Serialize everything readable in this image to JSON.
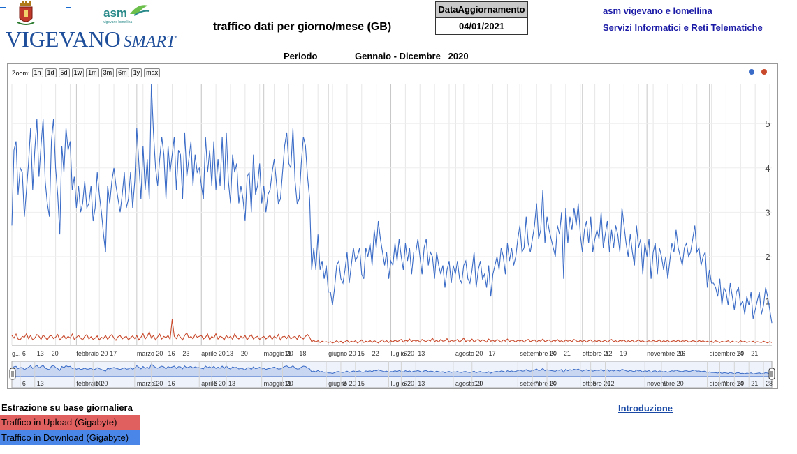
{
  "header": {
    "title": "traffico dati per giorno/mese (GB)",
    "update_label": "DataAggiornamento",
    "update_value": "04/01/2021",
    "org_line1": "asm vigevano e lomellina",
    "org_line2": "Servizi Informatici e Reti Telematiche",
    "periodo_label": "Periodo",
    "periodo_value": "Gennaio - Dicembre   2020",
    "city_logo_main": "VIGEVANO",
    "city_logo_sub": "SMART",
    "asm_logo_text": "asm",
    "asm_logo_sub": "vigevano lomellina"
  },
  "zoom": {
    "label": "Zoom:",
    "buttons": [
      "1h",
      "1d",
      "5d",
      "1w",
      "1m",
      "3m",
      "6m",
      "1y",
      "max"
    ]
  },
  "legend": {
    "title": "Estrazione su base giornaliera",
    "upload": "Traffico in Upload (Gigabyte)",
    "download": "Traffico in Download (Gigabyte)"
  },
  "intro_link": "Introduzione",
  "colors": {
    "download": "#3a6bc6",
    "upload": "#c8492b",
    "accent": "#1a1aa6"
  },
  "chart_data": {
    "type": "line",
    "x_start": "2020-01-01",
    "x_end": "2020-12-31",
    "x_unit": "day",
    "ylim": [
      0,
      5.9
    ],
    "y_ticks": [
      1,
      2,
      3,
      4,
      5
    ],
    "x_ticks": [
      "g...",
      "6",
      "13",
      "20",
      "febbraio 20",
      "17",
      "marzo 20",
      "16",
      "23",
      "aprile 20",
      "13",
      "20",
      "maggio 20",
      "11",
      "18",
      "giugno 20",
      "15",
      "22",
      "luglio 20",
      "6",
      "13",
      "agosto 20",
      "17",
      "settembre 20",
      "14",
      "21",
      "ottobre 20",
      "12",
      "19",
      "novembre 20",
      "16",
      "dicembre 20",
      "14",
      "21"
    ],
    "navigator_ticks": [
      "6",
      "13",
      "febbraio 20",
      "10",
      "marzo 20",
      "9",
      "16",
      "aprile 20",
      "6",
      "13",
      "maggio 20",
      "11",
      "giugno 20",
      "8",
      "15",
      "luglio 20",
      "6",
      "13",
      "agosto 20",
      "10",
      "settembre 20",
      "7",
      "14",
      "ottobre 20",
      "5",
      "12",
      "novembre 20",
      "9",
      "dicembre 20",
      "7",
      "14",
      "21",
      "28"
    ],
    "grid": true,
    "series": [
      {
        "name": "Traffico in Download (Gigabyte)",
        "color": "#3a6bc6",
        "monthly_values": [
          [
            2.7,
            4.4,
            4.6,
            3.4,
            4.0,
            3.9,
            2.9,
            3.5,
            4.1,
            4.9,
            3.5,
            4.4,
            5.1,
            3.8,
            4.5,
            5.1,
            3.7,
            3.2,
            2.9,
            4.6,
            5.1,
            4.0,
            3.4,
            2.5,
            4.5,
            3.9,
            4.9,
            4.4,
            4.6,
            3.5,
            3.8
          ],
          [
            3.1,
            3.6,
            3.0,
            3.2,
            3.7,
            3.1,
            3.2,
            3.6,
            2.8,
            3.1,
            3.9,
            3.4,
            3.0,
            2.5,
            2.1,
            3.6,
            3.2,
            3.7,
            4.0,
            3.6,
            3.3,
            3.0,
            3.4,
            3.9,
            3.1,
            3.3,
            3.9,
            3.1,
            3.7
          ],
          [
            4.9,
            4.1,
            3.3,
            4.5,
            3.5,
            4.2,
            3.3,
            5.9,
            4.8,
            4.0,
            3.6,
            4.2,
            4.7,
            4.3,
            3.3,
            4.5,
            3.9,
            4.3,
            4.7,
            3.5,
            4.4,
            4.3,
            3.3,
            4.8,
            3.8,
            4.2,
            4.6,
            3.6,
            4.3,
            3.9,
            4.0
          ],
          [
            3.6,
            3.3,
            4.7,
            3.9,
            4.4,
            3.6,
            4.6,
            3.5,
            4.2,
            3.6,
            4.7,
            3.5,
            4.8,
            3.7,
            3.2,
            4.3,
            3.9,
            4.1,
            3.2,
            3.6,
            3.3,
            2.8,
            3.8,
            3.9,
            3.0,
            4.3,
            3.4,
            3.6,
            4.1,
            3.2
          ],
          [
            3.6,
            3.0,
            3.4,
            3.5,
            3.9,
            4.2,
            3.7,
            3.2,
            3.3,
            3.9,
            4.5,
            4.8,
            4.1,
            4.0,
            4.9,
            3.7,
            3.2,
            3.3,
            4.1,
            4.7,
            4.5,
            3.8,
            3.3,
            1.7,
            2.2,
            1.7,
            2.5,
            1.7,
            1.9,
            1.5,
            1.8
          ],
          [
            1.2,
            1.2,
            0.9,
            1.3,
            1.8,
            1.9,
            1.5,
            1.4,
            1.7,
            2.1,
            1.4,
            1.8,
            2.2,
            1.9,
            2.0,
            2.2,
            1.6,
            1.5,
            2.2,
            2.0,
            2.3,
            1.8,
            2.6,
            2.2,
            2.8,
            2.4,
            2.1,
            1.8,
            2.1,
            1.5
          ],
          [
            1.9,
            1.8,
            2.3,
            1.9,
            2.4,
            2.0,
            1.7,
            2.3,
            1.9,
            2.2,
            1.6,
            2.1,
            2.1,
            2.4,
            2.0,
            1.6,
            2.2,
            2.4,
            1.8,
            2.1,
            2.0,
            1.5,
            2.1,
            1.8,
            1.6,
            1.8,
            1.3,
            1.7,
            1.9,
            1.4,
            1.8
          ],
          [
            1.6,
            1.9,
            1.5,
            1.4,
            1.8,
            1.9,
            1.5,
            1.4,
            1.7,
            2.1,
            1.3,
            1.7,
            1.9,
            1.5,
            1.6,
            1.3,
            1.8,
            1.1,
            1.6,
            1.8,
            2.0,
            1.7,
            2.2,
            2.0,
            1.6,
            2.3,
            1.9,
            2.2,
            1.8,
            2.0,
            2.4
          ],
          [
            2.7,
            2.1,
            2.2,
            2.9,
            2.3,
            2.1,
            2.4,
            2.7,
            3.2,
            2.4,
            2.6,
            3.5,
            2.3,
            2.9,
            2.6,
            2.4,
            2.2,
            2.0,
            2.7,
            2.5,
            3.0,
            1.5,
            3.1,
            2.3,
            2.9,
            2.6,
            3.1,
            2.7,
            3.2,
            2.5
          ],
          [
            2.1,
            2.6,
            2.8,
            2.3,
            2.9,
            2.1,
            2.4,
            2.6,
            2.4,
            3.0,
            2.2,
            2.5,
            2.8,
            2.1,
            2.6,
            2.2,
            2.7,
            2.5,
            2.1,
            3.1,
            2.7,
            2.3,
            2.0,
            2.5,
            2.1,
            1.8,
            2.7,
            2.2,
            2.4,
            1.6,
            2.3
          ],
          [
            2.0,
            2.4,
            1.5,
            2.1,
            2.3,
            1.6,
            2.2,
            2.0,
            1.7,
            2.0,
            1.5,
            1.9,
            2.3,
            2.1,
            2.6,
            2.2,
            2.0,
            1.8,
            2.2,
            2.3,
            2.0,
            2.1,
            2.4,
            2.7,
            2.1,
            2.2,
            1.8,
            2.0,
            2.1,
            1.3
          ],
          [
            1.7,
            1.4,
            1.4,
            1.3,
            1.1,
            1.5,
            0.9,
            1.3,
            1.2,
            0.9,
            1.4,
            1.1,
            0.8,
            1.2,
            1.3,
            0.9,
            1.0,
            0.7,
            1.1,
            0.9,
            1.2,
            0.6,
            0.8,
            1.0,
            1.2,
            0.7,
            0.9,
            1.3,
            1.1,
            0.8,
            0.5
          ]
        ]
      },
      {
        "name": "Traffico in Upload (Gigabyte)",
        "color": "#c8492b",
        "monthly_values": [
          [
            0.22,
            0.16,
            0.25,
            0.14,
            0.12,
            0.2,
            0.18,
            0.26,
            0.15,
            0.22,
            0.12,
            0.16,
            0.24,
            0.2,
            0.13,
            0.23,
            0.18,
            0.12,
            0.2,
            0.22,
            0.15,
            0.18,
            0.24,
            0.12,
            0.17,
            0.22,
            0.14,
            0.2,
            0.16,
            0.25,
            0.13
          ],
          [
            0.18,
            0.22,
            0.16,
            0.12,
            0.2,
            0.24,
            0.14,
            0.19,
            0.13,
            0.16,
            0.21,
            0.12,
            0.18,
            0.15,
            0.22,
            0.13,
            0.2,
            0.24,
            0.16,
            0.11,
            0.19,
            0.22,
            0.14,
            0.18,
            0.2,
            0.12,
            0.17,
            0.21,
            0.15
          ],
          [
            0.22,
            0.12,
            0.18,
            0.26,
            0.14,
            0.2,
            0.3,
            0.16,
            0.22,
            0.12,
            0.19,
            0.25,
            0.14,
            0.2,
            0.17,
            0.22,
            0.13,
            0.58,
            0.2,
            0.15,
            0.24,
            0.18,
            0.12,
            0.22,
            0.28,
            0.16,
            0.2,
            0.14,
            0.24,
            0.18,
            0.2
          ],
          [
            0.22,
            0.14,
            0.18,
            0.25,
            0.12,
            0.2,
            0.16,
            0.26,
            0.14,
            0.2,
            0.18,
            0.12,
            0.22,
            0.16,
            0.2,
            0.13,
            0.25,
            0.18,
            0.14,
            0.2,
            0.16,
            0.22,
            0.12,
            0.19,
            0.24,
            0.14,
            0.18,
            0.2,
            0.13,
            0.17
          ],
          [
            0.2,
            0.14,
            0.18,
            0.22,
            0.13,
            0.2,
            0.16,
            0.24,
            0.12,
            0.19,
            0.2,
            0.15,
            0.22,
            0.14,
            0.18,
            0.2,
            0.13,
            0.22,
            0.17,
            0.14,
            0.2,
            0.24,
            0.18,
            0.08,
            0.11,
            0.07,
            0.1,
            0.06,
            0.09,
            0.07,
            0.08
          ],
          [
            0.06,
            0.08,
            0.05,
            0.07,
            0.1,
            0.06,
            0.09,
            0.05,
            0.08,
            0.11,
            0.06,
            0.09,
            0.07,
            0.1,
            0.05,
            0.08,
            0.12,
            0.06,
            0.09,
            0.07,
            0.11,
            0.06,
            0.1,
            0.08,
            0.05,
            0.09,
            0.12,
            0.07,
            0.1,
            0.06
          ],
          [
            0.1,
            0.07,
            0.12,
            0.08,
            0.1,
            0.13,
            0.07,
            0.11,
            0.09,
            0.14,
            0.08,
            0.12,
            0.09,
            0.11,
            0.07,
            0.13,
            0.1,
            0.08,
            0.12,
            0.09,
            0.16,
            0.08,
            0.11,
            0.07,
            0.13,
            0.09,
            0.1,
            0.15,
            0.07,
            0.11,
            0.09
          ],
          [
            0.1,
            0.13,
            0.07,
            0.11,
            0.16,
            0.08,
            0.12,
            0.09,
            0.14,
            0.07,
            0.11,
            0.13,
            0.08,
            0.12,
            0.1,
            0.07,
            0.14,
            0.09,
            0.11,
            0.08,
            0.13,
            0.1,
            0.07,
            0.12,
            0.09,
            0.14,
            0.08,
            0.11,
            0.1,
            0.07,
            0.12
          ],
          [
            0.09,
            0.12,
            0.07,
            0.11,
            0.13,
            0.08,
            0.1,
            0.12,
            0.07,
            0.11,
            0.09,
            0.14,
            0.08,
            0.1,
            0.12,
            0.07,
            0.11,
            0.09,
            0.13,
            0.08,
            0.1,
            0.07,
            0.12,
            0.09,
            0.11,
            0.08,
            0.13,
            0.1,
            0.07,
            0.11
          ],
          [
            0.08,
            0.11,
            0.07,
            0.1,
            0.12,
            0.07,
            0.1,
            0.08,
            0.12,
            0.07,
            0.09,
            0.11,
            0.07,
            0.1,
            0.13,
            0.08,
            0.1,
            0.07,
            0.11,
            0.09,
            0.12,
            0.07,
            0.1,
            0.08,
            0.11,
            0.07,
            0.09,
            0.12,
            0.08,
            0.1,
            0.07
          ],
          [
            0.08,
            0.1,
            0.07,
            0.11,
            0.08,
            0.09,
            0.12,
            0.07,
            0.1,
            0.08,
            0.11,
            0.07,
            0.09,
            0.1,
            0.08,
            0.12,
            0.07,
            0.1,
            0.09,
            0.11,
            0.07,
            0.08,
            0.1,
            0.09,
            0.07,
            0.11,
            0.08,
            0.1,
            0.07,
            0.09
          ],
          [
            0.07,
            0.09,
            0.06,
            0.1,
            0.08,
            0.06,
            0.09,
            0.07,
            0.08,
            0.1,
            0.06,
            0.09,
            0.07,
            0.08,
            0.06,
            0.1,
            0.07,
            0.09,
            0.06,
            0.08,
            0.07,
            0.09,
            0.06,
            0.08,
            0.07,
            0.06,
            0.09,
            0.07,
            0.05,
            0.08,
            0.06
          ]
        ]
      }
    ]
  }
}
